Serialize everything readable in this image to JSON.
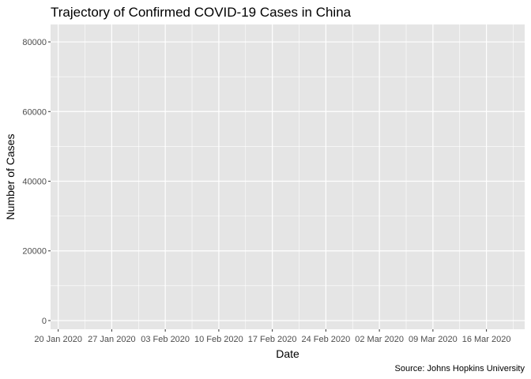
{
  "chart_data": {
    "type": "line",
    "title": "Trajectory of Confirmed COVID-19 Cases in China",
    "xlabel": "Date",
    "ylabel": "Number of Cases",
    "caption": "Source: Johns Hopkins University",
    "x_axis": {
      "scale": "date",
      "range": [
        "2020-01-19",
        "2020-03-21"
      ],
      "ticks": [
        {
          "date": "2020-01-20",
          "label": "20 Jan 2020"
        },
        {
          "date": "2020-01-27",
          "label": "27 Jan 2020"
        },
        {
          "date": "2020-02-03",
          "label": "03 Feb 2020"
        },
        {
          "date": "2020-02-10",
          "label": "10 Feb 2020"
        },
        {
          "date": "2020-02-17",
          "label": "17 Feb 2020"
        },
        {
          "date": "2020-02-24",
          "label": "24 Feb 2020"
        },
        {
          "date": "2020-03-02",
          "label": "02 Mar 2020"
        },
        {
          "date": "2020-03-09",
          "label": "09 Mar 2020"
        },
        {
          "date": "2020-03-16",
          "label": "16 Mar 2020"
        }
      ]
    },
    "y_axis": {
      "range": [
        -2500,
        85000
      ],
      "ticks": [
        {
          "value": 0,
          "label": "0"
        },
        {
          "value": 20000,
          "label": "20000"
        },
        {
          "value": 40000,
          "label": "40000"
        },
        {
          "value": 60000,
          "label": "60000"
        },
        {
          "value": 80000,
          "label": "80000"
        }
      ],
      "minor_ticks": [
        10000,
        30000,
        50000,
        70000
      ]
    },
    "grid": true,
    "panel_color": "#e5e5e5",
    "grid_color": "#ffffff",
    "series": []
  }
}
